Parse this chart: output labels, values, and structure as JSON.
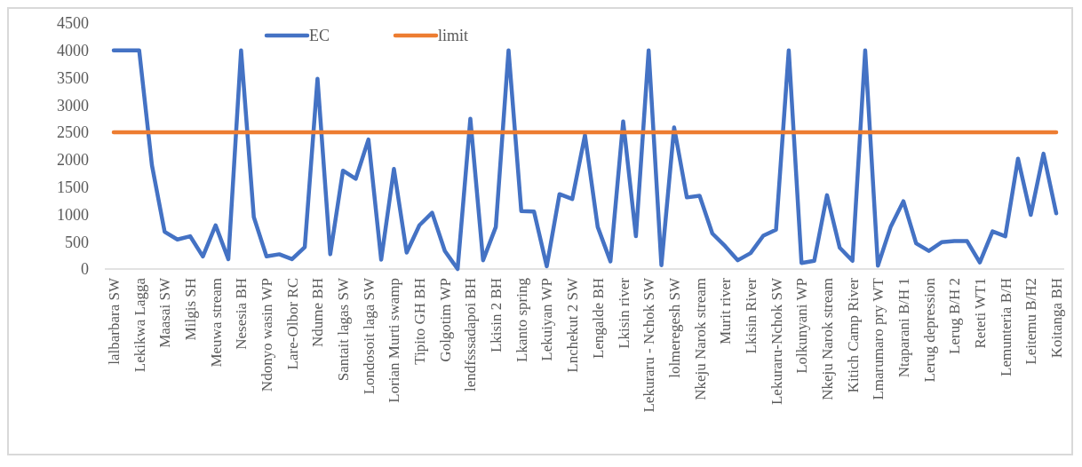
{
  "chart_data": {
    "type": "line",
    "categories": [
      "lalbarbara SW",
      null,
      "Lekikwa Lagga",
      null,
      "Maasai SW",
      null,
      "Milgis SH",
      null,
      "Meuwa stream",
      null,
      "Nesesia BH",
      null,
      "Ndonyo wasin WP",
      null,
      "Lare-Olbor RC",
      null,
      "Ndume BH",
      null,
      "Santait lagas  SW",
      null,
      "Londosoit laga SW",
      null,
      "Lorian Murti swamp",
      null,
      "Tipito GH BH",
      null,
      "Golgotim  WP",
      null,
      "lendfsssadapoi BH",
      null,
      "Lkisin 2 BH",
      null,
      "Lkanto spring",
      null,
      "Lekuiyan WP",
      null,
      "Lnchekut 2 SW",
      null,
      "Lengalde BH",
      null,
      "Lkisin river",
      null,
      "Lekuraru - Nchok SW",
      null,
      "lolmeregesh SW",
      null,
      "Nkeju Narok stream",
      null,
      "Murit river",
      null,
      "Lkisin River",
      null,
      "Lekuraru-Nchok SW",
      null,
      "Lolkunyani WP",
      null,
      "Nkeju Narok stream",
      null,
      "Kitich Camp River",
      null,
      "Lmarumaro pry WT",
      null,
      "Ntaparani B/H 1",
      null,
      "Lerug depression",
      null,
      "Lerug B/H 2",
      null,
      "Reteti WT1",
      null,
      "Lemunteria B/H",
      null,
      "Leitemu B/H2",
      null,
      "Koitanga BH"
    ],
    "series": [
      {
        "name": "EC",
        "color": "#4472c4",
        "values": [
          4000,
          4000,
          4000,
          1900,
          680,
          540,
          600,
          230,
          800,
          180,
          4000,
          950,
          230,
          270,
          180,
          400,
          3480,
          270,
          1800,
          1650,
          2370,
          170,
          1830,
          300,
          800,
          1030,
          330,
          0,
          2750,
          160,
          770,
          4000,
          1060,
          1050,
          50,
          1370,
          1280,
          2450,
          770,
          140,
          2700,
          600,
          4000,
          70,
          2590,
          1310,
          1340,
          650,
          420,
          160,
          290,
          610,
          720,
          4000,
          110,
          150,
          1350,
          390,
          150,
          4000,
          60,
          770,
          1240,
          470,
          330,
          490,
          510,
          510,
          120,
          690,
          600,
          2020,
          990,
          2110,
          1020
        ]
      },
      {
        "name": "limit",
        "color": "#ed7d31",
        "values": [
          2500,
          2500,
          2500,
          2500,
          2500,
          2500,
          2500,
          2500,
          2500,
          2500,
          2500,
          2500,
          2500,
          2500,
          2500,
          2500,
          2500,
          2500,
          2500,
          2500,
          2500,
          2500,
          2500,
          2500,
          2500,
          2500,
          2500,
          2500,
          2500,
          2500,
          2500,
          2500,
          2500,
          2500,
          2500,
          2500,
          2500,
          2500,
          2500,
          2500,
          2500,
          2500,
          2500,
          2500,
          2500,
          2500,
          2500,
          2500,
          2500,
          2500,
          2500,
          2500,
          2500,
          2500,
          2500,
          2500,
          2500,
          2500,
          2500,
          2500,
          2500,
          2500,
          2500,
          2500,
          2500,
          2500,
          2500,
          2500,
          2500,
          2500,
          2500,
          2500,
          2500,
          2500,
          2500
        ]
      }
    ],
    "ylim": [
      0,
      4500
    ],
    "yticks": [
      0,
      500,
      1000,
      1500,
      2000,
      2500,
      3000,
      3500,
      4000,
      4500
    ],
    "grid": false,
    "legend": "top",
    "marker": "none",
    "line_style": "solid"
  }
}
